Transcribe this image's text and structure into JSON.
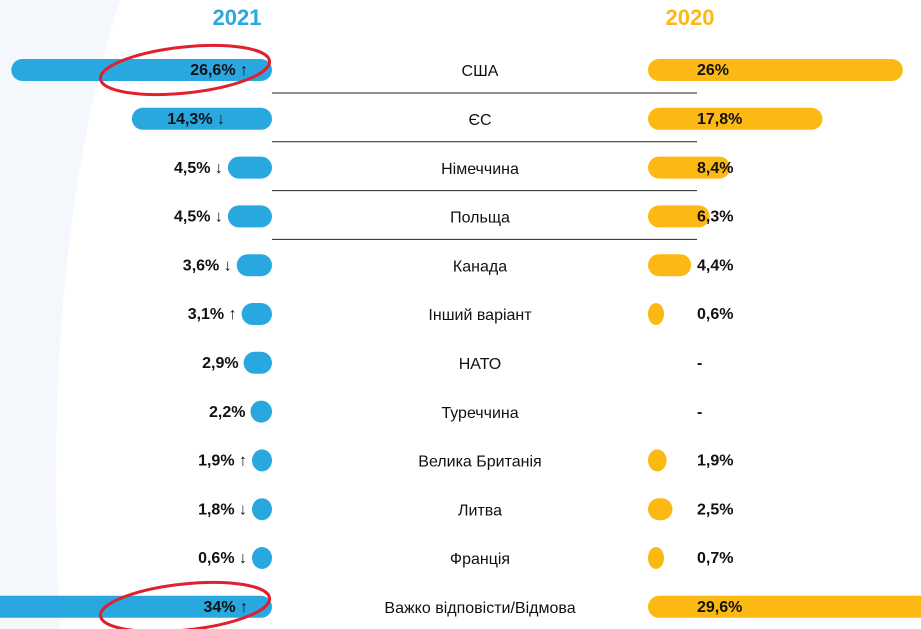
{
  "chart_data": {
    "type": "butterfly",
    "categories": [
      "США",
      "ЄС",
      "Німеччина",
      "Польща",
      "Канада",
      "Інший варіант",
      "НАТО",
      "Туреччина",
      "Велика Британія",
      "Литва",
      "Франція",
      "Важко відповісти/Відмова"
    ],
    "series": [
      {
        "name": "2021",
        "color": "#29a8e0",
        "values": [
          26.6,
          14.3,
          4.5,
          4.5,
          3.6,
          3.1,
          2.9,
          2.2,
          1.9,
          1.8,
          0.6,
          34
        ],
        "value_labels": [
          "26,6% ↑",
          "14,3% ↓",
          "4,5% ↓",
          "4,5% ↓",
          "3,6% ↓",
          "3,1% ↑",
          "2,9%",
          "2,2%",
          "1,9% ↑",
          "1,8% ↓",
          "0,6% ↓",
          "34% ↑"
        ]
      },
      {
        "name": "2020",
        "color": "#fdb913",
        "values": [
          26,
          17.8,
          8.4,
          6.3,
          4.4,
          0.6,
          null,
          null,
          1.9,
          2.5,
          0.7,
          29.6
        ],
        "value_labels": [
          "26%",
          "17,8%",
          "8,4%",
          "6,3%",
          "4,4%",
          "0,6%",
          "-",
          "-",
          "1,9%",
          "2,5%",
          "0,7%",
          "29,6%"
        ]
      }
    ]
  }
}
